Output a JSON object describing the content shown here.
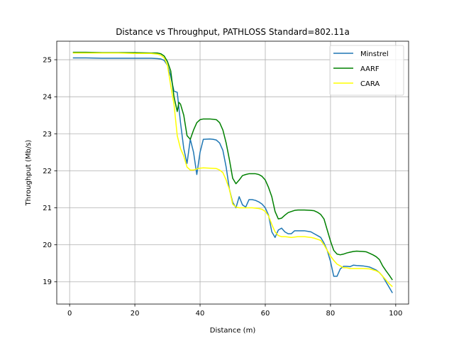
{
  "chart_data": {
    "type": "line",
    "title": "Distance vs Throughput, PATHLOSS Standard=802.11a",
    "xlabel": "Distance (m)",
    "ylabel": "Throughput (Mb/s)",
    "xlim": [
      -3.95,
      103.95
    ],
    "ylim": [
      18.4,
      25.5
    ],
    "xticks": [
      0,
      20,
      40,
      60,
      80,
      100
    ],
    "yticks": [
      19,
      20,
      21,
      22,
      23,
      24,
      25
    ],
    "grid": true,
    "legend_position": "top-right",
    "series": [
      {
        "name": "Minstrel",
        "color": "#1f77b4",
        "points": [
          [
            1,
            25.05
          ],
          [
            5,
            25.05
          ],
          [
            10,
            25.04
          ],
          [
            15,
            25.04
          ],
          [
            20,
            25.04
          ],
          [
            25,
            25.04
          ],
          [
            27,
            25.03
          ],
          [
            28,
            25.02
          ],
          [
            29,
            24.98
          ],
          [
            30,
            24.85
          ],
          [
            31,
            24.55
          ],
          [
            32,
            24.15
          ],
          [
            33,
            24.12
          ],
          [
            34,
            23.3
          ],
          [
            35,
            22.6
          ],
          [
            36,
            22.2
          ],
          [
            37,
            22.85
          ],
          [
            38,
            22.5
          ],
          [
            39,
            21.9
          ],
          [
            40,
            22.5
          ],
          [
            41,
            22.85
          ],
          [
            43,
            22.86
          ],
          [
            44,
            22.85
          ],
          [
            45,
            22.83
          ],
          [
            46,
            22.75
          ],
          [
            47,
            22.55
          ],
          [
            48,
            22.1
          ],
          [
            49,
            21.5
          ],
          [
            50,
            21.15
          ],
          [
            51,
            21.0
          ],
          [
            52,
            21.3
          ],
          [
            53,
            21.08
          ],
          [
            54,
            21.02
          ],
          [
            55,
            21.22
          ],
          [
            56,
            21.22
          ],
          [
            57,
            21.2
          ],
          [
            58,
            21.16
          ],
          [
            59,
            21.1
          ],
          [
            60,
            21.0
          ],
          [
            61,
            20.8
          ],
          [
            62,
            20.35
          ],
          [
            63,
            20.2
          ],
          [
            64,
            20.4
          ],
          [
            65,
            20.45
          ],
          [
            66,
            20.35
          ],
          [
            67,
            20.3
          ],
          [
            68,
            20.3
          ],
          [
            69,
            20.38
          ],
          [
            70,
            20.38
          ],
          [
            72,
            20.38
          ],
          [
            74,
            20.35
          ],
          [
            75,
            20.3
          ],
          [
            76,
            20.25
          ],
          [
            77,
            20.2
          ],
          [
            78,
            20.05
          ],
          [
            79,
            19.85
          ],
          [
            80,
            19.55
          ],
          [
            81,
            19.15
          ],
          [
            82,
            19.15
          ],
          [
            83,
            19.35
          ],
          [
            84,
            19.42
          ],
          [
            85,
            19.42
          ],
          [
            86,
            19.41
          ],
          [
            87,
            19.45
          ],
          [
            88,
            19.44
          ],
          [
            90,
            19.43
          ],
          [
            92,
            19.4
          ],
          [
            94,
            19.32
          ],
          [
            95,
            19.25
          ],
          [
            96,
            19.15
          ],
          [
            97,
            19.0
          ],
          [
            98,
            18.85
          ],
          [
            99,
            18.7
          ]
        ]
      },
      {
        "name": "AARF",
        "color": "#008000",
        "points": [
          [
            1,
            25.2
          ],
          [
            5,
            25.2
          ],
          [
            10,
            25.19
          ],
          [
            15,
            25.19
          ],
          [
            20,
            25.19
          ],
          [
            25,
            25.18
          ],
          [
            27,
            25.18
          ],
          [
            28,
            25.16
          ],
          [
            29,
            25.1
          ],
          [
            30,
            24.95
          ],
          [
            31,
            24.7
          ],
          [
            32,
            24.0
          ],
          [
            33,
            23.6
          ],
          [
            33.5,
            23.85
          ],
          [
            34,
            23.8
          ],
          [
            35,
            23.5
          ],
          [
            36,
            22.95
          ],
          [
            37,
            22.85
          ],
          [
            38,
            23.1
          ],
          [
            39,
            23.3
          ],
          [
            40,
            23.38
          ],
          [
            41,
            23.4
          ],
          [
            43,
            23.4
          ],
          [
            45,
            23.38
          ],
          [
            46,
            23.3
          ],
          [
            47,
            23.1
          ],
          [
            48,
            22.75
          ],
          [
            49,
            22.3
          ],
          [
            50,
            21.8
          ],
          [
            51,
            21.65
          ],
          [
            52,
            21.75
          ],
          [
            53,
            21.87
          ],
          [
            54,
            21.9
          ],
          [
            55,
            21.92
          ],
          [
            57,
            21.92
          ],
          [
            58,
            21.9
          ],
          [
            59,
            21.85
          ],
          [
            60,
            21.75
          ],
          [
            61,
            21.55
          ],
          [
            62,
            21.3
          ],
          [
            63,
            20.9
          ],
          [
            64,
            20.7
          ],
          [
            65,
            20.72
          ],
          [
            66,
            20.8
          ],
          [
            67,
            20.87
          ],
          [
            68,
            20.9
          ],
          [
            69,
            20.93
          ],
          [
            70,
            20.94
          ],
          [
            72,
            20.94
          ],
          [
            74,
            20.93
          ],
          [
            75,
            20.92
          ],
          [
            76,
            20.88
          ],
          [
            77,
            20.82
          ],
          [
            78,
            20.7
          ],
          [
            79,
            20.4
          ],
          [
            80,
            20.1
          ],
          [
            81,
            19.85
          ],
          [
            82,
            19.75
          ],
          [
            83,
            19.73
          ],
          [
            84,
            19.75
          ],
          [
            85,
            19.78
          ],
          [
            86,
            19.8
          ],
          [
            87,
            19.82
          ],
          [
            88,
            19.83
          ],
          [
            90,
            19.82
          ],
          [
            91,
            19.81
          ],
          [
            92,
            19.77
          ],
          [
            93,
            19.73
          ],
          [
            94,
            19.68
          ],
          [
            95,
            19.6
          ],
          [
            96,
            19.43
          ],
          [
            97,
            19.3
          ],
          [
            98,
            19.18
          ],
          [
            99,
            19.05
          ]
        ]
      },
      {
        "name": "CARA",
        "color": "#ffff00",
        "points": [
          [
            1,
            25.18
          ],
          [
            5,
            25.18
          ],
          [
            10,
            25.18
          ],
          [
            15,
            25.18
          ],
          [
            20,
            25.17
          ],
          [
            25,
            25.17
          ],
          [
            27,
            25.15
          ],
          [
            28,
            25.12
          ],
          [
            29,
            25.05
          ],
          [
            30,
            24.85
          ],
          [
            31,
            24.3
          ],
          [
            32,
            23.8
          ],
          [
            33,
            22.95
          ],
          [
            34,
            22.6
          ],
          [
            35,
            22.4
          ],
          [
            36,
            22.1
          ],
          [
            37,
            22.02
          ],
          [
            38,
            22.02
          ],
          [
            39,
            22.05
          ],
          [
            40,
            22.07
          ],
          [
            41,
            22.08
          ],
          [
            43,
            22.07
          ],
          [
            45,
            22.06
          ],
          [
            46,
            22.02
          ],
          [
            47,
            21.95
          ],
          [
            48,
            21.75
          ],
          [
            49,
            21.5
          ],
          [
            50,
            21.1
          ],
          [
            51,
            21.02
          ],
          [
            52,
            21.0
          ],
          [
            54,
            21.0
          ],
          [
            56,
            21.0
          ],
          [
            58,
            20.98
          ],
          [
            59,
            20.96
          ],
          [
            60,
            20.9
          ],
          [
            61,
            20.78
          ],
          [
            62,
            20.55
          ],
          [
            63,
            20.35
          ],
          [
            64,
            20.25
          ],
          [
            65,
            20.22
          ],
          [
            66,
            20.22
          ],
          [
            67,
            20.21
          ],
          [
            68,
            20.2
          ],
          [
            70,
            20.22
          ],
          [
            72,
            20.22
          ],
          [
            74,
            20.2
          ],
          [
            75,
            20.18
          ],
          [
            76,
            20.15
          ],
          [
            77,
            20.12
          ],
          [
            78,
            20.0
          ],
          [
            79,
            19.85
          ],
          [
            80,
            19.7
          ],
          [
            81,
            19.58
          ],
          [
            82,
            19.48
          ],
          [
            83,
            19.43
          ],
          [
            84,
            19.38
          ],
          [
            85,
            19.38
          ],
          [
            86,
            19.36
          ],
          [
            88,
            19.36
          ],
          [
            90,
            19.36
          ],
          [
            92,
            19.35
          ],
          [
            94,
            19.3
          ],
          [
            95,
            19.25
          ],
          [
            96,
            19.15
          ],
          [
            97,
            19.05
          ],
          [
            98,
            18.95
          ],
          [
            99,
            18.87
          ]
        ]
      }
    ]
  }
}
